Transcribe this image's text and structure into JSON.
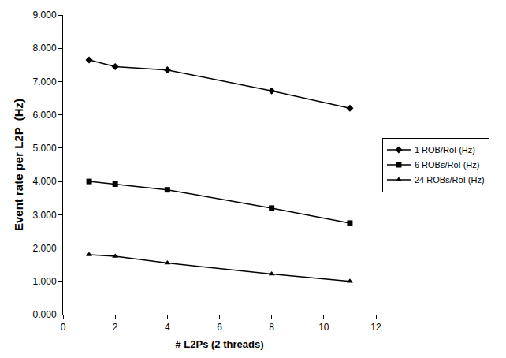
{
  "chart_data": {
    "type": "line",
    "x_label": "# L2Ps (2 threads)",
    "y_label": "Event rate per L2P  (Hz)",
    "x": [
      1,
      2,
      4,
      8,
      11
    ],
    "series": [
      {
        "name": "1 ROB/RoI (Hz)",
        "color": "#000000",
        "marker": "diamond",
        "values": [
          7.65,
          7.45,
          7.35,
          6.72,
          6.2
        ]
      },
      {
        "name": "6 ROBs/RoI (Hz)",
        "color": "#000000",
        "marker": "square",
        "values": [
          4.0,
          3.92,
          3.75,
          3.2,
          2.75
        ]
      },
      {
        "name": "24 ROBs/RoI (Hz)",
        "color": "#000000",
        "marker": "triangle",
        "values": [
          1.8,
          1.75,
          1.55,
          1.22,
          1.0
        ]
      }
    ],
    "xlim": [
      0,
      12
    ],
    "xticks": [
      0,
      2,
      4,
      6,
      8,
      10,
      12
    ],
    "ylim": [
      0,
      9
    ],
    "yticks": [
      {
        "value": 0,
        "label": "0.000"
      },
      {
        "value": 1,
        "label": "1.000"
      },
      {
        "value": 2,
        "label": "2.000"
      },
      {
        "value": 3,
        "label": "3.000"
      },
      {
        "value": 4,
        "label": "4.000"
      },
      {
        "value": 5,
        "label": "5.000"
      },
      {
        "value": 6,
        "label": "6.000"
      },
      {
        "value": 7,
        "label": "7.000"
      },
      {
        "value": 8,
        "label": "8.000"
      },
      {
        "value": 9,
        "label": "9.000"
      }
    ],
    "grid": false,
    "legend": "right"
  }
}
